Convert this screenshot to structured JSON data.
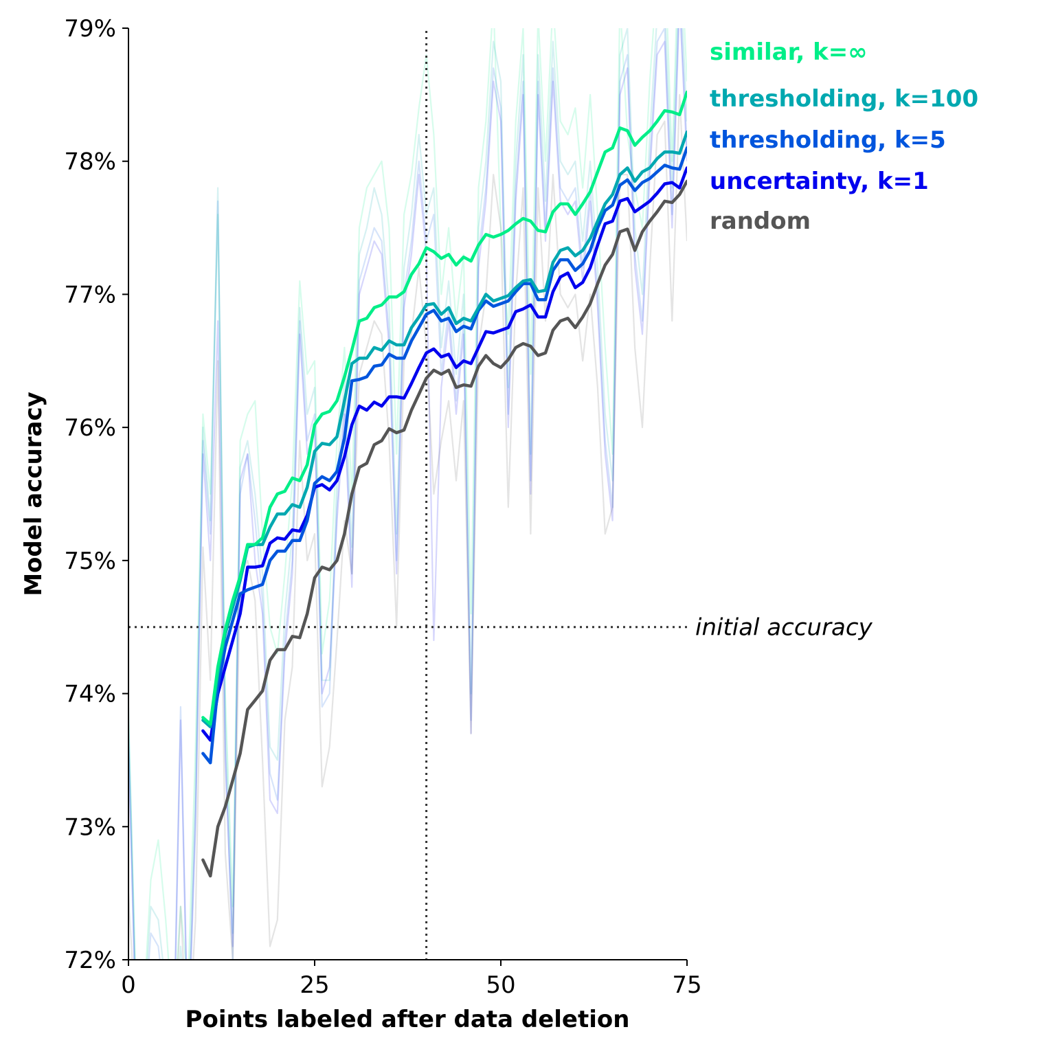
{
  "chart_data": {
    "type": "line",
    "title": "",
    "xlabel": "Points labeled after data deletion",
    "ylabel": "Model accuracy",
    "xlim": [
      0,
      75
    ],
    "ylim": [
      72,
      79
    ],
    "xticks": [
      0,
      25,
      50,
      75
    ],
    "xtick_labels": [
      "0",
      "25",
      "50",
      "75"
    ],
    "yticks": [
      72,
      73,
      74,
      75,
      76,
      77,
      78,
      79
    ],
    "ytick_labels": [
      "72%",
      "73%",
      "74%",
      "75%",
      "76%",
      "77%",
      "78%",
      "79%"
    ],
    "grid": false,
    "legend_placement": "right, inline labels",
    "reference_lines": {
      "horizontal": {
        "y": 74.5,
        "label": "initial accuracy",
        "style": "dotted"
      },
      "vertical": {
        "x": 40,
        "style": "dotted"
      }
    },
    "x": [
      10,
      11,
      12,
      13,
      14,
      15,
      16,
      17,
      18,
      19,
      20,
      21,
      22,
      23,
      24,
      25,
      26,
      27,
      28,
      29,
      30,
      31,
      32,
      33,
      34,
      35,
      36,
      37,
      38,
      39,
      40,
      41,
      42,
      43,
      44,
      45,
      46,
      47,
      48,
      49,
      50,
      51,
      52,
      53,
      54,
      55,
      56,
      57,
      58,
      59,
      60,
      61,
      62,
      63,
      64,
      65,
      66,
      67,
      68,
      69,
      70,
      71,
      72,
      73,
      74,
      75
    ],
    "series": [
      {
        "name": "similar, k=∞",
        "color": "#00ee88",
        "values": [
          73.82,
          73.77,
          74.2,
          74.48,
          74.7,
          74.88,
          75.12,
          75.12,
          75.17,
          75.4,
          75.5,
          75.52,
          75.62,
          75.6,
          75.72,
          76.02,
          76.1,
          76.12,
          76.2,
          76.38,
          76.58,
          76.8,
          76.82,
          76.9,
          76.92,
          76.98,
          76.98,
          77.02,
          77.15,
          77.23,
          77.35,
          77.32,
          77.27,
          77.3,
          77.22,
          77.28,
          77.25,
          77.37,
          77.45,
          77.43,
          77.45,
          77.48,
          77.53,
          77.57,
          77.55,
          77.48,
          77.47,
          77.62,
          77.68,
          77.68,
          77.6,
          77.68,
          77.77,
          77.92,
          78.07,
          78.1,
          78.25,
          78.23,
          78.12,
          78.18,
          78.23,
          78.3,
          78.38,
          78.37,
          78.35,
          78.52
        ]
      },
      {
        "name": "thresholding, k=100",
        "color": "#00a8b0",
        "values": [
          73.8,
          73.75,
          74.15,
          74.45,
          74.65,
          74.85,
          75.1,
          75.12,
          75.12,
          75.25,
          75.35,
          75.35,
          75.42,
          75.4,
          75.55,
          75.82,
          75.88,
          75.87,
          75.93,
          76.2,
          76.48,
          76.52,
          76.52,
          76.6,
          76.58,
          76.65,
          76.62,
          76.62,
          76.75,
          76.83,
          76.92,
          76.93,
          76.85,
          76.9,
          76.78,
          76.82,
          76.8,
          76.9,
          77.0,
          76.95,
          76.97,
          76.99,
          77.05,
          77.1,
          77.11,
          77.02,
          77.03,
          77.24,
          77.33,
          77.35,
          77.29,
          77.33,
          77.42,
          77.55,
          77.68,
          77.75,
          77.9,
          77.95,
          77.85,
          77.92,
          77.95,
          78.02,
          78.07,
          78.07,
          78.06,
          78.22
        ]
      },
      {
        "name": "thresholding, k=5",
        "color": "#0055dd",
        "values": [
          73.55,
          73.48,
          74.05,
          74.35,
          74.55,
          74.75,
          74.78,
          74.8,
          74.82,
          75.0,
          75.07,
          75.07,
          75.15,
          75.15,
          75.3,
          75.58,
          75.63,
          75.6,
          75.67,
          75.92,
          76.35,
          76.36,
          76.38,
          76.46,
          76.47,
          76.55,
          76.52,
          76.52,
          76.65,
          76.75,
          76.85,
          76.88,
          76.8,
          76.82,
          76.72,
          76.76,
          76.74,
          76.88,
          76.95,
          76.91,
          76.93,
          76.95,
          77.02,
          77.08,
          77.08,
          76.96,
          76.96,
          77.18,
          77.26,
          77.26,
          77.18,
          77.23,
          77.33,
          77.5,
          77.63,
          77.67,
          77.82,
          77.86,
          77.78,
          77.84,
          77.87,
          77.92,
          77.97,
          77.95,
          77.94,
          78.1
        ]
      },
      {
        "name": "uncertainty, k=1",
        "color": "#0000ee",
        "values": [
          73.72,
          73.65,
          74.0,
          74.2,
          74.4,
          74.6,
          74.95,
          74.95,
          74.96,
          75.13,
          75.17,
          75.16,
          75.23,
          75.22,
          75.34,
          75.55,
          75.57,
          75.53,
          75.6,
          75.78,
          76.02,
          76.16,
          76.13,
          76.19,
          76.16,
          76.23,
          76.23,
          76.22,
          76.33,
          76.45,
          76.56,
          76.59,
          76.53,
          76.55,
          76.45,
          76.5,
          76.48,
          76.6,
          76.72,
          76.71,
          76.73,
          76.75,
          76.87,
          76.89,
          76.92,
          76.83,
          76.83,
          77.02,
          77.13,
          77.16,
          77.05,
          77.09,
          77.2,
          77.37,
          77.53,
          77.55,
          77.7,
          77.72,
          77.62,
          77.66,
          77.7,
          77.76,
          77.83,
          77.84,
          77.8,
          77.95
        ]
      },
      {
        "name": "random",
        "color": "#555555",
        "values": [
          72.75,
          72.63,
          73.0,
          73.15,
          73.35,
          73.55,
          73.88,
          73.95,
          74.02,
          74.25,
          74.33,
          74.33,
          74.43,
          74.42,
          74.6,
          74.87,
          74.95,
          74.93,
          75.0,
          75.2,
          75.5,
          75.7,
          75.73,
          75.87,
          75.9,
          75.99,
          75.96,
          75.98,
          76.13,
          76.25,
          76.37,
          76.43,
          76.4,
          76.43,
          76.3,
          76.32,
          76.31,
          76.46,
          76.54,
          76.48,
          76.45,
          76.51,
          76.6,
          76.63,
          76.61,
          76.54,
          76.56,
          76.73,
          76.8,
          76.82,
          76.75,
          76.83,
          76.93,
          77.08,
          77.22,
          77.3,
          77.47,
          77.49,
          77.33,
          77.47,
          77.55,
          77.62,
          77.7,
          77.69,
          77.75,
          77.85
        ]
      }
    ],
    "background_traces": [
      {
        "name": "similar, k=∞ (individual run)",
        "color": "#00ee88",
        "x": [
          0,
          1,
          2,
          3,
          4,
          5,
          6,
          7,
          8,
          9,
          10,
          11,
          12,
          13,
          14,
          15,
          16,
          17,
          18,
          19,
          20,
          21,
          22,
          23,
          24,
          25,
          26,
          27,
          28,
          29,
          30,
          31,
          32,
          33,
          34,
          35,
          36,
          37,
          38,
          39,
          40,
          41,
          42,
          43,
          44,
          45,
          46,
          47,
          48,
          49,
          50,
          51,
          52,
          53,
          54,
          55,
          56,
          57,
          58,
          59,
          60,
          61,
          62,
          63,
          64,
          65,
          66,
          67,
          68,
          69,
          70,
          71,
          72,
          73,
          74,
          75
        ],
        "values": [
          73.8,
          71.8,
          71.6,
          72.6,
          72.9,
          72.3,
          71.5,
          72.4,
          71.8,
          73.6,
          76.1,
          75.5,
          77.6,
          74.0,
          72.4,
          75.9,
          76.1,
          76.2,
          75.2,
          74.5,
          74.3,
          74.9,
          75.6,
          77.1,
          76.4,
          76.5,
          74.3,
          74.7,
          75.9,
          76.6,
          75.5,
          77.5,
          77.8,
          77.9,
          78.0,
          77.5,
          75.8,
          77.6,
          77.9,
          78.4,
          78.8,
          78.2,
          77.0,
          77.5,
          76.8,
          77.3,
          74.6,
          77.8,
          78.3,
          79.2,
          77.5,
          76.7,
          78.3,
          79.0,
          76.4,
          79.1,
          78.0,
          79.2,
          78.3,
          78.2,
          78.4,
          77.8,
          78.5,
          77.6,
          76.6,
          75.8,
          79.2,
          78.2,
          77.8,
          77.5,
          78.6,
          79.4,
          79.6,
          78.0,
          79.8,
          78.6
        ]
      },
      {
        "name": "thresholding, k=100 (individual run)",
        "color": "#00a8b0",
        "x": [
          0,
          1,
          2,
          3,
          4,
          5,
          6,
          7,
          8,
          9,
          10,
          11,
          12,
          13,
          14,
          15,
          16,
          17,
          18,
          19,
          20,
          21,
          22,
          23,
          24,
          25,
          26,
          27,
          28,
          29,
          30,
          31,
          32,
          33,
          34,
          35,
          36,
          37,
          38,
          39,
          40,
          41,
          42,
          43,
          44,
          45,
          46,
          47,
          48,
          49,
          50,
          51,
          52,
          53,
          54,
          55,
          56,
          57,
          58,
          59,
          60,
          61,
          62,
          63,
          64,
          65,
          66,
          67,
          68,
          69,
          70,
          71,
          72,
          73,
          74,
          75
        ],
        "values": [
          73.9,
          71.7,
          71.5,
          72.4,
          72.3,
          71.8,
          71.3,
          72.1,
          71.5,
          73.3,
          76.0,
          75.3,
          77.8,
          73.8,
          72.2,
          75.7,
          75.9,
          75.5,
          74.9,
          73.6,
          73.5,
          74.6,
          75.2,
          76.9,
          76.1,
          76.3,
          74.1,
          74.1,
          75.6,
          76.4,
          75.1,
          77.3,
          77.5,
          77.8,
          77.6,
          76.9,
          75.2,
          77.2,
          77.6,
          78.2,
          77.6,
          77.8,
          76.6,
          77.1,
          76.4,
          77.0,
          74.0,
          77.5,
          78.0,
          78.9,
          78.6,
          76.3,
          78.0,
          78.8,
          75.8,
          78.8,
          77.7,
          78.9,
          78.0,
          77.9,
          78.0,
          77.4,
          78.0,
          77.2,
          76.1,
          75.6,
          78.8,
          79.0,
          77.5,
          77.0,
          78.2,
          79.1,
          79.2,
          77.8,
          79.5,
          78.3
        ]
      },
      {
        "name": "thresholding, k=5 (individual run)",
        "color": "#0055dd",
        "x": [
          0,
          1,
          2,
          3,
          4,
          5,
          6,
          7,
          8,
          9,
          10,
          11,
          12,
          13,
          14,
          15,
          16,
          17,
          18,
          19,
          20,
          21,
          22,
          23,
          24,
          25,
          26,
          27,
          28,
          29,
          30,
          31,
          32,
          33,
          34,
          35,
          36,
          37,
          38,
          39,
          40,
          41,
          42,
          43,
          44,
          45,
          46,
          47,
          48,
          49,
          50,
          51,
          52,
          53,
          54,
          55,
          56,
          57,
          58,
          59,
          60,
          61,
          62,
          63,
          64,
          65,
          66,
          67,
          68,
          69,
          70,
          71,
          72,
          73,
          74,
          75
        ],
        "values": [
          73.7,
          71.6,
          71.4,
          72.2,
          72.1,
          71.6,
          71.2,
          73.9,
          71.4,
          73.1,
          75.9,
          75.2,
          77.7,
          73.6,
          72.0,
          75.5,
          75.8,
          75.3,
          74.7,
          73.4,
          73.2,
          74.4,
          75.0,
          76.8,
          75.9,
          76.1,
          73.9,
          74.0,
          75.4,
          76.2,
          74.9,
          77.1,
          77.3,
          77.5,
          77.4,
          76.7,
          75.0,
          77.0,
          77.4,
          78.0,
          77.4,
          77.6,
          76.4,
          76.9,
          76.2,
          76.8,
          73.8,
          77.3,
          77.8,
          78.7,
          78.4,
          76.1,
          77.8,
          78.6,
          75.6,
          78.6,
          77.5,
          78.7,
          77.8,
          77.7,
          77.8,
          77.2,
          77.8,
          77.0,
          75.9,
          75.4,
          78.6,
          78.8,
          77.3,
          76.8,
          78.0,
          78.9,
          79.0,
          77.6,
          79.3,
          78.1
        ]
      },
      {
        "name": "uncertainty, k=1 (individual run)",
        "color": "#0000ee",
        "x": [
          0,
          1,
          2,
          3,
          4,
          5,
          6,
          7,
          8,
          9,
          10,
          11,
          12,
          13,
          14,
          15,
          16,
          17,
          18,
          19,
          20,
          21,
          22,
          23,
          24,
          25,
          26,
          27,
          28,
          29,
          30,
          31,
          32,
          33,
          34,
          35,
          36,
          37,
          38,
          39,
          40,
          41,
          42,
          43,
          44,
          45,
          46,
          47,
          48,
          49,
          50,
          51,
          52,
          53,
          54,
          55,
          56,
          57,
          58,
          59,
          60,
          61,
          62,
          63,
          64,
          65,
          66,
          67,
          68,
          69,
          70,
          71,
          72,
          73,
          74,
          75
        ],
        "values": [
          73.6,
          71.5,
          71.4,
          72.0,
          71.9,
          71.5,
          71.1,
          73.8,
          71.3,
          73.0,
          75.8,
          75.0,
          76.8,
          73.5,
          72.1,
          75.6,
          75.8,
          75.0,
          74.6,
          73.2,
          73.1,
          74.3,
          74.9,
          76.7,
          75.8,
          76.0,
          74.0,
          74.2,
          75.3,
          76.1,
          74.8,
          77.0,
          77.2,
          77.4,
          77.3,
          76.6,
          74.9,
          76.9,
          77.3,
          77.9,
          77.3,
          74.4,
          76.3,
          76.8,
          76.1,
          76.7,
          73.7,
          77.2,
          77.7,
          78.6,
          78.3,
          76.0,
          77.7,
          78.5,
          75.5,
          78.5,
          77.4,
          78.6,
          77.7,
          77.6,
          77.7,
          77.1,
          77.7,
          76.9,
          75.8,
          75.3,
          78.5,
          78.7,
          77.2,
          76.7,
          77.9,
          78.8,
          78.9,
          77.5,
          79.2,
          78.0
        ]
      },
      {
        "name": "random (individual run)",
        "color": "#555555",
        "x": [
          0,
          1,
          2,
          3,
          4,
          5,
          6,
          7,
          8,
          9,
          10,
          11,
          12,
          13,
          14,
          15,
          16,
          17,
          18,
          19,
          20,
          21,
          22,
          23,
          24,
          25,
          26,
          27,
          28,
          29,
          30,
          31,
          32,
          33,
          34,
          35,
          36,
          37,
          38,
          39,
          40,
          41,
          42,
          43,
          44,
          45,
          46,
          47,
          48,
          49,
          50,
          51,
          52,
          53,
          54,
          55,
          56,
          57,
          58,
          59,
          60,
          61,
          62,
          63,
          64,
          65,
          66,
          67,
          68,
          69,
          70,
          71,
          72,
          73,
          74,
          75
        ],
        "values": [
          72.5,
          71.5,
          71.4,
          71.9,
          71.8,
          71.4,
          71.2,
          72.4,
          71.3,
          72.3,
          75.1,
          74.1,
          76.5,
          72.8,
          72.0,
          74.9,
          75.0,
          74.7,
          73.5,
          72.1,
          72.3,
          73.8,
          74.2,
          75.9,
          75.0,
          75.2,
          73.3,
          73.6,
          74.4,
          75.3,
          74.9,
          76.4,
          76.6,
          76.8,
          76.7,
          75.9,
          74.5,
          76.5,
          76.7,
          77.2,
          76.6,
          75.5,
          75.9,
          76.2,
          75.6,
          76.2,
          73.7,
          76.6,
          77.0,
          77.9,
          77.5,
          75.4,
          77.0,
          77.8,
          75.2,
          77.8,
          76.8,
          77.9,
          77.0,
          76.9,
          77.0,
          76.5,
          77.0,
          76.3,
          75.2,
          75.4,
          77.9,
          77.9,
          76.6,
          76.0,
          77.2,
          78.2,
          78.3,
          76.8,
          78.5,
          77.4
        ]
      }
    ]
  }
}
